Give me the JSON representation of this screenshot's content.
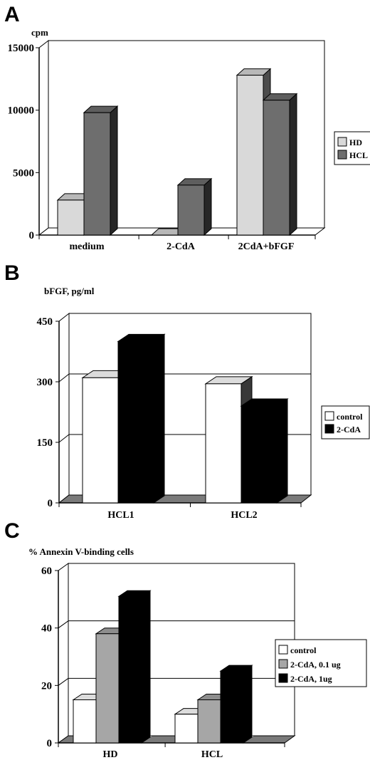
{
  "chart_data": [
    {
      "type": "bar",
      "panel": "A",
      "ylabel": "cpm",
      "ylim": [
        0,
        15000
      ],
      "yticks": [
        "0",
        "5000",
        "10000",
        "15000"
      ],
      "categories": [
        "medium",
        "2-CdA",
        "2CdA+bFGF"
      ],
      "grid": false,
      "legend_position": "right",
      "series": [
        {
          "name": "HD",
          "values": [
            2800,
            0,
            12800
          ]
        },
        {
          "name": "HCL",
          "values": [
            9800,
            4000,
            10800
          ]
        }
      ]
    },
    {
      "type": "bar",
      "panel": "B",
      "ylabel": "bFGF, pg/ml",
      "ylim": [
        0,
        450
      ],
      "yticks": [
        "0",
        "150",
        "300",
        "450"
      ],
      "categories": [
        "HCL1",
        "HCL2"
      ],
      "grid": true,
      "legend_position": "right",
      "series": [
        {
          "name": "control",
          "values": [
            310,
            295
          ]
        },
        {
          "name": "2-CdA",
          "values": [
            400,
            240
          ]
        }
      ]
    },
    {
      "type": "bar",
      "panel": "C",
      "ylabel": "% Annexin V-binding cells",
      "ylim": [
        0,
        60
      ],
      "yticks": [
        "0",
        "20",
        "40",
        "60"
      ],
      "categories": [
        "HD",
        "HCL"
      ],
      "grid": true,
      "legend_position": "right",
      "series": [
        {
          "name": "control",
          "values": [
            15,
            10
          ]
        },
        {
          "name": "2-CdA, 0.1 ug",
          "values": [
            38,
            15
          ]
        },
        {
          "name": "2-CdA, 1ug",
          "values": [
            51,
            25
          ]
        }
      ]
    }
  ],
  "colors": {
    "HD": "#d9d9d9",
    "HCL": "#6e6e6e",
    "control": "#ffffff",
    "2-CdA": "#000000",
    "low_dose": "#a6a6a6",
    "high_dose": "#000000",
    "floor": "#7a7a7a"
  }
}
